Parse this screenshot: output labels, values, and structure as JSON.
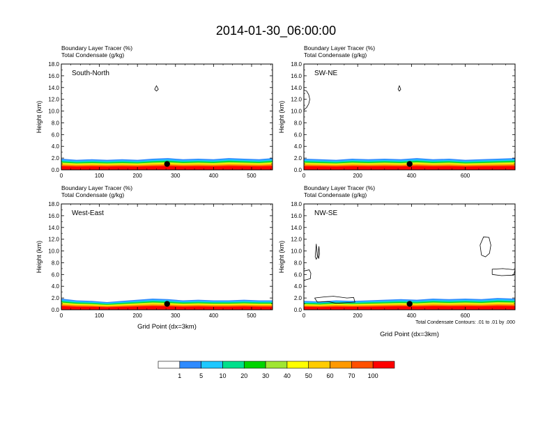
{
  "title": "2014-01-30_06:00:00",
  "legend_bar": {
    "labels": [
      "1",
      "5",
      "10",
      "20",
      "30",
      "40",
      "50",
      "60",
      "70",
      "100"
    ],
    "colors": [
      "#ffffff",
      "#2e8bff",
      "#1ec8ff",
      "#00e08c",
      "#00d400",
      "#a0e632",
      "#ffff00",
      "#ffcc00",
      "#ff9900",
      "#ff5000",
      "#ff0000"
    ]
  },
  "chart_data": [
    {
      "type": "heatmap",
      "title_lines": [
        "Boundary Layer Tracer   (%)",
        "Total Condensate   (g/kg)"
      ],
      "panel_label": "South-North",
      "ylabel": "Height (km)",
      "xlabel": "",
      "ylim": [
        0,
        18
      ],
      "yticks": [
        "0.0",
        "2.0",
        "4.0",
        "6.0",
        "8.0",
        "10.0",
        "12.0",
        "14.0",
        "16.0",
        "18.0"
      ],
      "xlim": [
        0,
        555
      ],
      "xticks": [
        0,
        100,
        200,
        300,
        400,
        500
      ],
      "marker_x": 278,
      "tracer_top_km": [
        [
          0,
          1.9
        ],
        [
          40,
          1.7
        ],
        [
          80,
          1.8
        ],
        [
          120,
          1.7
        ],
        [
          160,
          1.8
        ],
        [
          200,
          1.7
        ],
        [
          240,
          1.9
        ],
        [
          280,
          2.0
        ],
        [
          320,
          1.8
        ],
        [
          360,
          1.9
        ],
        [
          400,
          1.8
        ],
        [
          440,
          2.0
        ],
        [
          480,
          1.9
        ],
        [
          520,
          1.8
        ],
        [
          555,
          2.0
        ]
      ],
      "contours": [
        {
          "x": [
            245,
            250,
            255,
            250,
            245
          ],
          "y": [
            13.7,
            14.3,
            13.7,
            13.4,
            13.7
          ]
        }
      ]
    },
    {
      "type": "heatmap",
      "title_lines": [
        "Boundary Layer Tracer   (%)",
        "Total Condensate   (g/kg)"
      ],
      "panel_label": "SW-NE",
      "ylabel": "Height (km)",
      "xlabel": "",
      "ylim": [
        0,
        18
      ],
      "yticks": [
        "0.0",
        "2.0",
        "4.0",
        "6.0",
        "8.0",
        "10.0",
        "12.0",
        "14.0",
        "16.0",
        "18.0"
      ],
      "xlim": [
        0,
        785
      ],
      "xticks": [
        0,
        200,
        400,
        600
      ],
      "marker_x": 393,
      "tracer_top_km": [
        [
          0,
          1.9
        ],
        [
          60,
          1.8
        ],
        [
          120,
          1.7
        ],
        [
          180,
          1.9
        ],
        [
          240,
          1.8
        ],
        [
          300,
          1.9
        ],
        [
          360,
          1.8
        ],
        [
          420,
          2.0
        ],
        [
          480,
          1.8
        ],
        [
          540,
          1.9
        ],
        [
          600,
          1.7
        ],
        [
          660,
          1.8
        ],
        [
          720,
          1.9
        ],
        [
          785,
          2.0
        ]
      ],
      "contours": [
        {
          "x": [
            350,
            355,
            360,
            355,
            350
          ],
          "y": [
            13.7,
            14.3,
            13.7,
            13.4,
            13.7
          ]
        },
        {
          "x": [
            0,
            10,
            18,
            22,
            18,
            10,
            0
          ],
          "y": [
            10.2,
            10.6,
            11.2,
            12.0,
            12.8,
            13.4,
            13.6
          ]
        }
      ]
    },
    {
      "type": "heatmap",
      "title_lines": [
        "Boundary Layer Tracer   (%)",
        "Total Condensate   (g/kg)"
      ],
      "panel_label": "West-East",
      "ylabel": "Height (km)",
      "xlabel": "Grid Point (dx=3km)",
      "ylim": [
        0,
        18
      ],
      "yticks": [
        "0.0",
        "2.0",
        "4.0",
        "6.0",
        "8.0",
        "10.0",
        "12.0",
        "14.0",
        "16.0",
        "18.0"
      ],
      "xlim": [
        0,
        555
      ],
      "xticks": [
        0,
        100,
        200,
        300,
        400,
        500
      ],
      "marker_x": 278,
      "tracer_top_km": [
        [
          0,
          1.9
        ],
        [
          40,
          1.6
        ],
        [
          80,
          1.5
        ],
        [
          120,
          1.3
        ],
        [
          160,
          1.5
        ],
        [
          200,
          1.7
        ],
        [
          240,
          1.9
        ],
        [
          280,
          1.8
        ],
        [
          320,
          1.6
        ],
        [
          360,
          1.7
        ],
        [
          400,
          1.6
        ],
        [
          440,
          1.6
        ],
        [
          480,
          1.7
        ],
        [
          520,
          1.6
        ],
        [
          555,
          1.6
        ]
      ],
      "contours": []
    },
    {
      "type": "heatmap",
      "title_lines": [
        "Boundary Layer Tracer   (%)",
        "Total Condensate   (g/kg)"
      ],
      "panel_label": "NW-SE",
      "ylabel": "Height (km)",
      "xlabel": "Grid Point (dx=3km)",
      "contour_note": "Total Condensate Contours: .01 to .01 by .000",
      "ylim": [
        0,
        18
      ],
      "yticks": [
        "0.0",
        "2.0",
        "4.0",
        "6.0",
        "8.0",
        "10.0",
        "12.0",
        "14.0",
        "16.0",
        "18.0"
      ],
      "xlim": [
        0,
        785
      ],
      "xticks": [
        0,
        200,
        400,
        600
      ],
      "marker_x": 393,
      "tracer_top_km": [
        [
          0,
          1.5
        ],
        [
          60,
          1.4
        ],
        [
          120,
          1.6
        ],
        [
          180,
          1.5
        ],
        [
          240,
          1.6
        ],
        [
          300,
          1.7
        ],
        [
          360,
          1.8
        ],
        [
          420,
          1.7
        ],
        [
          480,
          1.9
        ],
        [
          540,
          1.8
        ],
        [
          600,
          1.9
        ],
        [
          660,
          1.8
        ],
        [
          720,
          2.0
        ],
        [
          785,
          1.9
        ]
      ],
      "contours": [
        {
          "x": [
            42,
            46,
            50,
            46,
            42
          ],
          "y": [
            9.0,
            11.2,
            9.0,
            8.6,
            9.0
          ]
        },
        {
          "x": [
            52,
            56,
            58,
            55,
            52
          ],
          "y": [
            9.2,
            10.8,
            9.5,
            8.7,
            9.2
          ]
        },
        {
          "x": [
            0,
            24,
            26,
            20,
            0
          ],
          "y": [
            5.0,
            5.3,
            6.2,
            6.8,
            6.6
          ]
        },
        {
          "x": [
            660,
            675,
            690,
            695,
            688,
            668,
            655,
            660
          ],
          "y": [
            9.3,
            9.0,
            9.6,
            11.0,
            12.3,
            12.4,
            11.0,
            9.3
          ]
        },
        {
          "x": [
            700,
            735,
            780,
            785,
            740,
            700,
            700
          ],
          "y": [
            6.0,
            5.8,
            5.9,
            6.8,
            7.0,
            6.9,
            6.0
          ]
        },
        {
          "x": [
            40,
            80,
            110,
            160,
            185,
            190,
            150,
            120,
            90,
            50,
            40
          ],
          "y": [
            2.0,
            2.2,
            2.3,
            2.0,
            2.1,
            1.3,
            1.2,
            1.1,
            1.4,
            1.3,
            2.0
          ]
        }
      ]
    }
  ]
}
